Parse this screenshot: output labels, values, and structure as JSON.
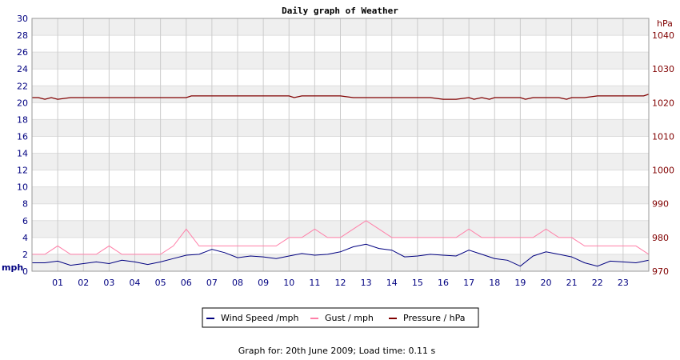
{
  "chart_data": {
    "type": "line",
    "title": "Daily graph of Weather",
    "x": {
      "tick_labels": [
        "01",
        "02",
        "03",
        "04",
        "05",
        "06",
        "07",
        "08",
        "09",
        "10",
        "11",
        "12",
        "13",
        "14",
        "15",
        "16",
        "17",
        "18",
        "19",
        "20",
        "21",
        "22",
        "23"
      ],
      "range_hours": [
        0,
        24
      ]
    },
    "y_left": {
      "unit": "mph",
      "range": [
        0,
        30
      ],
      "ticks": [
        0,
        2,
        4,
        6,
        8,
        10,
        12,
        14,
        16,
        18,
        20,
        22,
        24,
        26,
        28,
        30
      ]
    },
    "y_right": {
      "unit": "hPa",
      "range": [
        970,
        1045
      ],
      "ticks": [
        970,
        980,
        990,
        1000,
        1010,
        1020,
        1030,
        1040
      ]
    },
    "grid": true,
    "legend_position": "bottom",
    "legend": [
      {
        "label": "Wind Speed /mph",
        "color": "#000080"
      },
      {
        "label": "Gust / mph",
        "color": "#ff7fa8"
      },
      {
        "label": "Pressure / hPa",
        "color": "#800000"
      }
    ],
    "series": [
      {
        "name": "Wind Speed /mph",
        "axis": "left",
        "color": "#000080",
        "x": [
          0,
          0.5,
          1,
          1.5,
          2,
          2.5,
          3,
          3.5,
          4,
          4.5,
          5,
          5.5,
          6,
          6.5,
          7,
          7.5,
          8,
          8.5,
          9,
          9.5,
          10,
          10.5,
          11,
          11.5,
          12,
          12.5,
          13,
          13.5,
          14,
          14.5,
          15,
          15.5,
          16,
          16.5,
          17,
          17.5,
          18,
          18.5,
          19,
          19.5,
          20,
          20.5,
          21,
          21.5,
          22,
          22.5,
          23,
          23.5,
          24
        ],
        "values": [
          1,
          1,
          1.2,
          0.7,
          0.9,
          1.1,
          0.9,
          1.3,
          1.1,
          0.8,
          1.1,
          1.5,
          1.9,
          2.0,
          2.6,
          2.2,
          1.6,
          1.8,
          1.7,
          1.5,
          1.8,
          2.1,
          1.9,
          2.0,
          2.3,
          2.9,
          3.2,
          2.7,
          2.5,
          1.7,
          1.8,
          2.0,
          1.9,
          1.8,
          2.5,
          2.0,
          1.5,
          1.3,
          0.6,
          1.8,
          2.3,
          2.0,
          1.7,
          1.0,
          0.6,
          1.2,
          1.1,
          1.0,
          1.3
        ]
      },
      {
        "name": "Gust / mph",
        "axis": "left",
        "color": "#ff7fa8",
        "x": [
          0,
          0.5,
          1,
          1.5,
          2,
          2.5,
          3,
          3.5,
          4,
          4.5,
          5,
          5.5,
          6,
          6.5,
          7,
          7.5,
          8,
          8.5,
          9,
          9.5,
          10,
          10.5,
          11,
          11.5,
          12,
          12.5,
          13,
          13.5,
          14,
          14.5,
          15,
          15.5,
          16,
          16.5,
          17,
          17.5,
          18,
          18.5,
          19,
          19.5,
          20,
          20.5,
          21,
          21.5,
          22,
          22.5,
          23,
          23.5,
          24
        ],
        "values": [
          2,
          2,
          3,
          2,
          2,
          2,
          3,
          2,
          2,
          2,
          2,
          3,
          5,
          3,
          3,
          3,
          3,
          3,
          3,
          3,
          4,
          4,
          5,
          4,
          4,
          5,
          6,
          5,
          4,
          4,
          4,
          4,
          4,
          4,
          5,
          4,
          4,
          4,
          4,
          4,
          5,
          4,
          4,
          3,
          3,
          3,
          3,
          3,
          2
        ]
      },
      {
        "name": "Pressure / hPa",
        "axis": "right",
        "color": "#800000",
        "x": [
          0,
          0.25,
          0.5,
          0.75,
          1,
          1.5,
          2,
          3,
          4,
          5,
          6,
          6.2,
          6.5,
          7,
          8,
          9,
          10,
          10.2,
          10.5,
          11,
          12,
          12.5,
          13,
          14,
          15,
          15.5,
          16,
          16.5,
          17,
          17.2,
          17.5,
          17.8,
          18,
          19,
          19.2,
          19.5,
          20,
          20.5,
          20.8,
          21,
          21.5,
          22,
          23,
          23.8,
          24
        ],
        "values": [
          1021.5,
          1021.5,
          1021,
          1021.5,
          1021,
          1021.5,
          1021.5,
          1021.5,
          1021.5,
          1021.5,
          1021.5,
          1022,
          1022,
          1022,
          1022,
          1022,
          1022,
          1021.5,
          1022,
          1022,
          1022,
          1021.5,
          1021.5,
          1021.5,
          1021.5,
          1021.5,
          1021,
          1021,
          1021.5,
          1021,
          1021.5,
          1021,
          1021.5,
          1021.5,
          1021,
          1021.5,
          1021.5,
          1021.5,
          1021,
          1021.5,
          1021.5,
          1022,
          1022,
          1022,
          1022.5
        ]
      }
    ]
  },
  "footer": "Graph for: 20th June 2009; Load time: 0.11 s"
}
